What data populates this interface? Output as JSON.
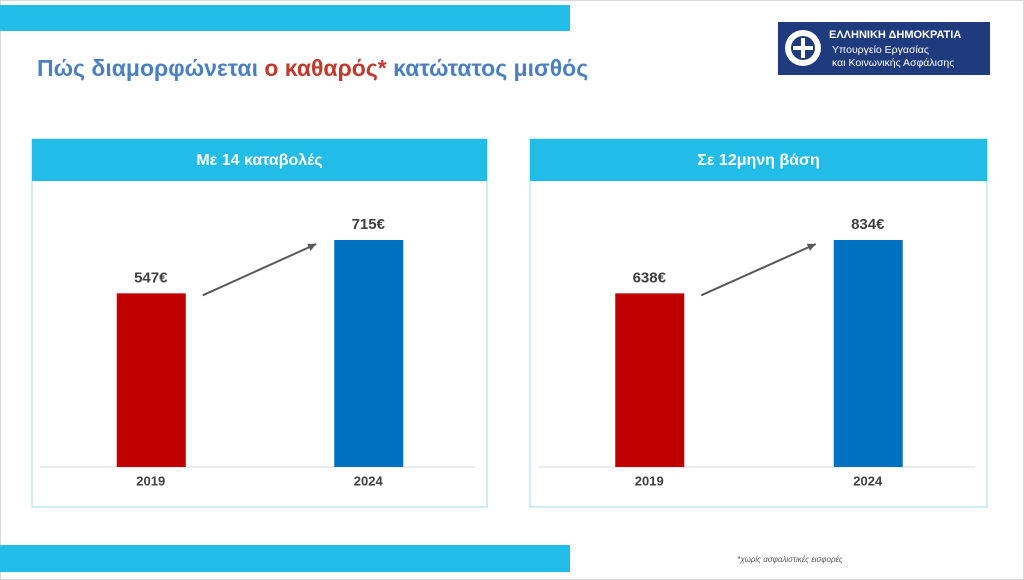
{
  "header": {
    "title_parts": [
      "Πώς διαμορφώνεται ",
      "ο καθαρός*",
      " κατώτατος μισθός"
    ],
    "logo": {
      "line1": "ΕΛΛΗΝΙΚΗ ΔΗΜΟΚΡΑΤΙΑ",
      "line2": "Υπουργείο Εργασίας",
      "line3": "και Κοινωνικής Ασφάλισης"
    }
  },
  "chart_data": [
    {
      "type": "bar",
      "title": "Με 14 καταβολές",
      "categories": [
        "2019",
        "2024"
      ],
      "values": [
        547,
        715
      ],
      "value_labels": [
        "547€",
        "715€"
      ],
      "colors": [
        "#c00000",
        "#0070c0"
      ]
    },
    {
      "type": "bar",
      "title": "Σε 12μηνη βάση",
      "categories": [
        "2019",
        "2024"
      ],
      "values": [
        638,
        834
      ],
      "value_labels": [
        "638€",
        "834€"
      ],
      "colors": [
        "#c00000",
        "#0070c0"
      ]
    }
  ],
  "footnote": "*χωρίς ασφαλιστικές εισφορές"
}
